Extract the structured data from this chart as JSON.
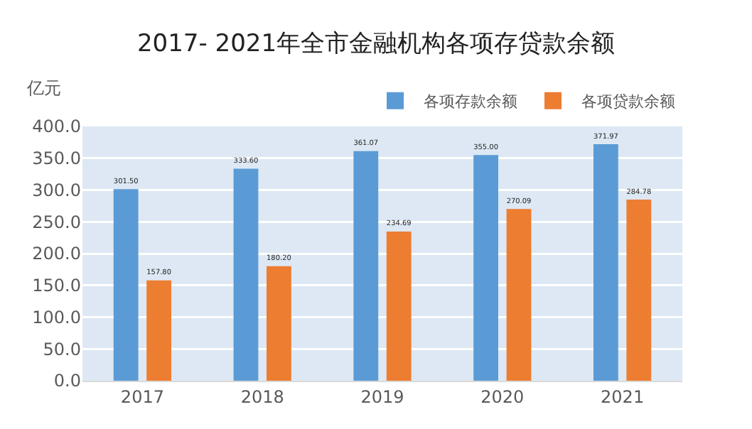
{
  "chart_data": {
    "type": "bar",
    "title": "2017- 2021年全市金融机构各项存贷款余额",
    "ylabel": "亿元",
    "categories": [
      "2017",
      "2018",
      "2019",
      "2020",
      "2021"
    ],
    "series": [
      {
        "name": "各项存款余额",
        "color": "#5b9bd5",
        "values": [
          301.5,
          333.6,
          361.07,
          355.0,
          371.97
        ],
        "value_labels": [
          "301.50",
          "333.60",
          "361.07",
          "355.00",
          "371.97"
        ]
      },
      {
        "name": "各项贷款余额",
        "color": "#ed7d31",
        "values": [
          157.8,
          180.2,
          234.69,
          270.09,
          284.78
        ],
        "value_labels": [
          "157.80",
          "180.20",
          "234.69",
          "270.09",
          "284.78"
        ]
      }
    ],
    "ylim": [
      0,
      400
    ],
    "yticks": [
      {
        "value": 0,
        "label": "0.0"
      },
      {
        "value": 50,
        "label": "50.0"
      },
      {
        "value": 100,
        "label": "100.0"
      },
      {
        "value": 150,
        "label": "150.0"
      },
      {
        "value": 200,
        "label": "200.0"
      },
      {
        "value": 250,
        "label": "250.0"
      },
      {
        "value": 300,
        "label": "300.0"
      },
      {
        "value": 350,
        "label": "350.0"
      },
      {
        "value": 400,
        "label": "400.0"
      }
    ],
    "grid": "y",
    "legend": "top right"
  }
}
